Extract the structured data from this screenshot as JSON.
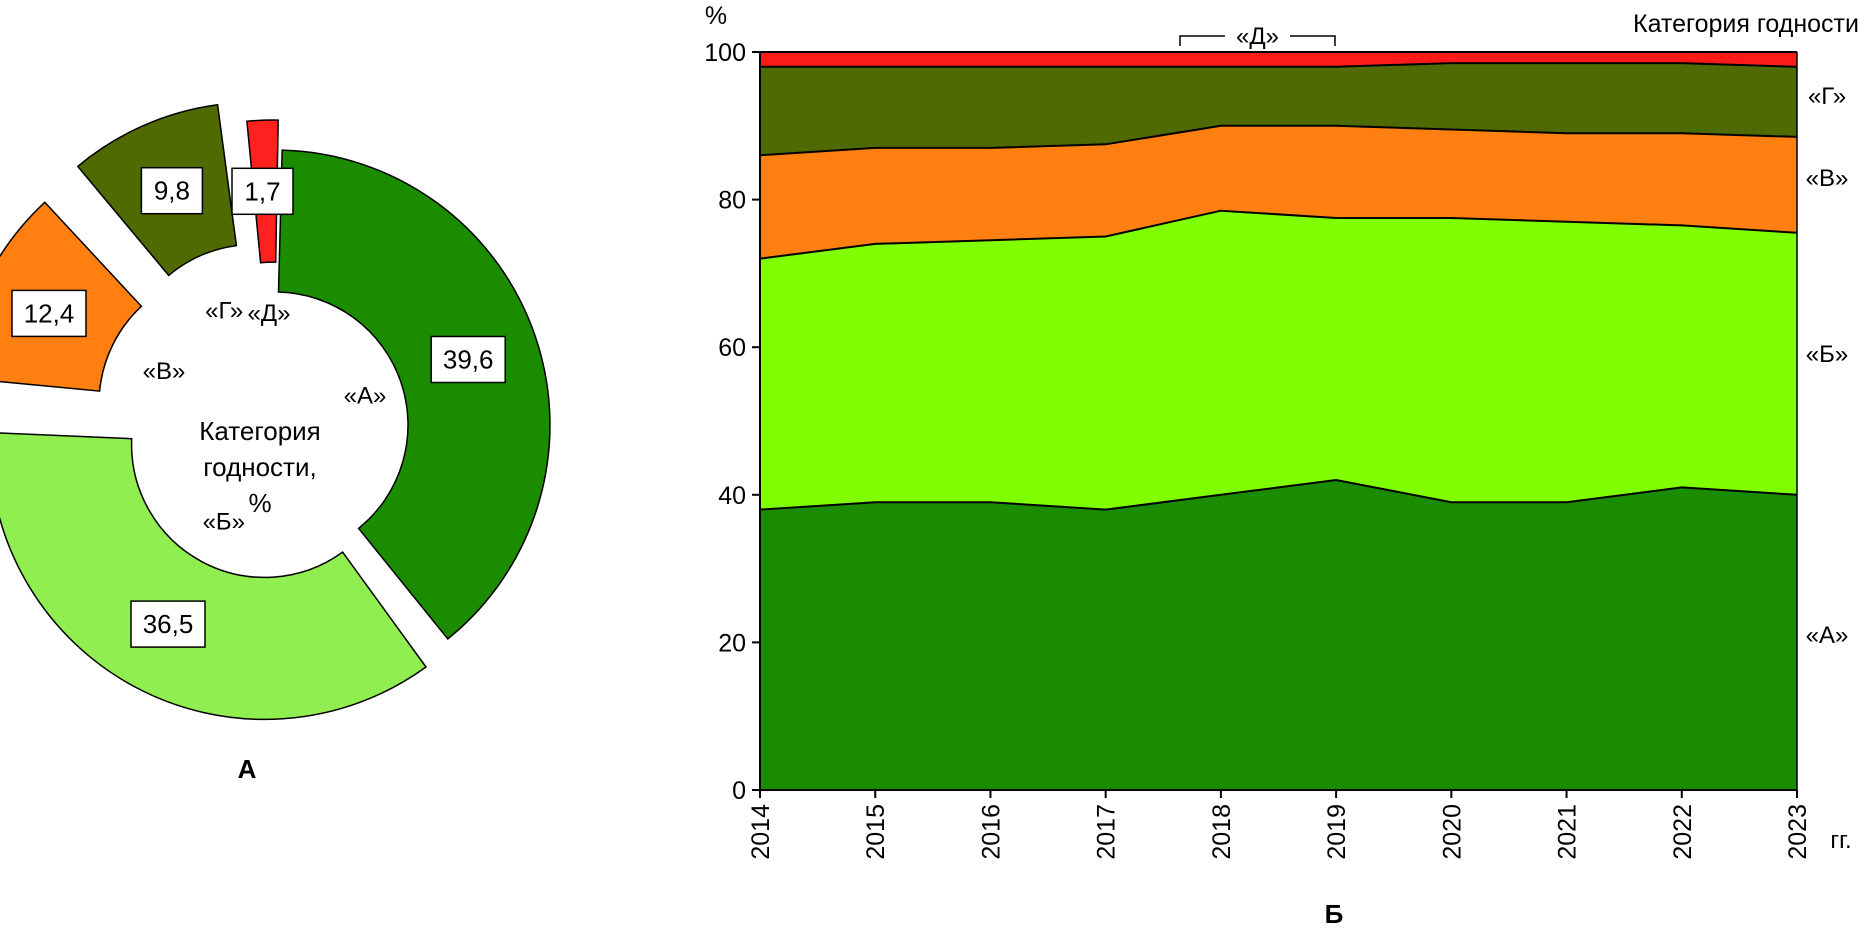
{
  "panels": {
    "a_label": "А",
    "b_label": "Б"
  },
  "chart_data": [
    {
      "type": "pie",
      "panel": "А",
      "title": "Категория годности, %",
      "title_lines": [
        "Категория",
        "годности,",
        "%"
      ],
      "donut": true,
      "slices": [
        {
          "name": "«А»",
          "value": 39.6,
          "value_label": "39,6",
          "color": "#1b8c00"
        },
        {
          "name": "«Б»",
          "value": 36.5,
          "value_label": "36,5",
          "color": "#90ee50"
        },
        {
          "name": "«В»",
          "value": 12.4,
          "value_label": "12,4",
          "color": "#ff8010"
        },
        {
          "name": "«Г»",
          "value": 9.8,
          "value_label": "9,8",
          "color": "#4e6a00"
        },
        {
          "name": "«Д»",
          "value": 1.7,
          "value_label": "1,7",
          "color": "#ff2020"
        }
      ]
    },
    {
      "type": "area",
      "panel": "Б",
      "stacked": true,
      "title": "Категория годности",
      "ylabel": "%",
      "xlabel": "гг.",
      "ylim": [
        0,
        100
      ],
      "yticks": [
        0,
        20,
        40,
        60,
        80,
        100
      ],
      "x": [
        "2014",
        "2015",
        "2016",
        "2017",
        "2018",
        "2019",
        "2020",
        "2021",
        "2022",
        "2023"
      ],
      "series": [
        {
          "name": "«А»",
          "color": "#1b8c00",
          "values": [
            38,
            39,
            39,
            38,
            40,
            42,
            39,
            39,
            41,
            40
          ]
        },
        {
          "name": "«Б»",
          "color": "#80ff00",
          "values": [
            34,
            35,
            35.5,
            37,
            38.5,
            35.5,
            38.5,
            38,
            35.5,
            35.5
          ]
        },
        {
          "name": "«В»",
          "color": "#ff8010",
          "values": [
            14,
            13,
            12.5,
            12.5,
            11.5,
            12.5,
            12,
            12,
            12.5,
            13
          ]
        },
        {
          "name": "«Г»",
          "color": "#4e6a00",
          "values": [
            12,
            11,
            11,
            10.5,
            8,
            8,
            9,
            9.5,
            9.5,
            9.5
          ]
        },
        {
          "name": "«Д»",
          "color": "#ff1a1a",
          "values": [
            2,
            2,
            2,
            2,
            2,
            2,
            1.5,
            1.5,
            1.5,
            2
          ]
        }
      ]
    }
  ]
}
